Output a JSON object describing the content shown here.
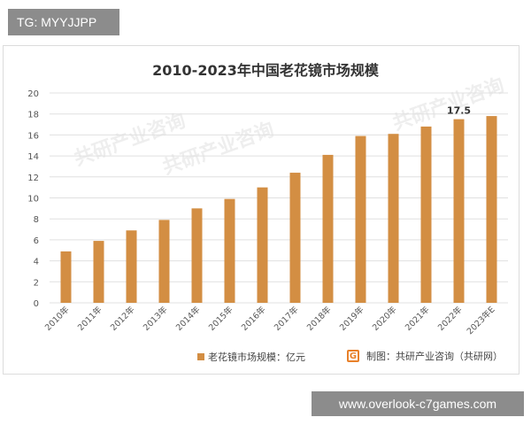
{
  "tag_text": "TG: MYYJJPP",
  "banner_text": "www.overlook-c7games.com",
  "watermark_text": "共研产业咨询",
  "source_text": "制图：共研产业咨询（共研网）",
  "source_icon": "G",
  "colors": {
    "bar": "#d38e43",
    "grid": "#e0e0e0",
    "text": "#555555",
    "accent": "#e8812a"
  },
  "chart_data": {
    "type": "bar",
    "title": "2010-2023年中国老花镜市场规模",
    "categories": [
      "2010年",
      "2011年",
      "2012年",
      "2013年",
      "2014年",
      "2015年",
      "2016年",
      "2017年",
      "2018年",
      "2019年",
      "2020年",
      "2021年",
      "2022年",
      "2023年E"
    ],
    "series": [
      {
        "name": "老花镜市场规模：亿元",
        "values": [
          4.9,
          5.9,
          6.9,
          7.9,
          9.0,
          9.9,
          11.0,
          12.4,
          14.1,
          15.9,
          16.1,
          16.8,
          17.5,
          17.8
        ]
      }
    ],
    "data_labels": [
      {
        "index": 12,
        "text": "17.5"
      }
    ],
    "ylim": [
      0,
      20
    ],
    "yticks": [
      0,
      2,
      4,
      6,
      8,
      10,
      12,
      14,
      16,
      18,
      20
    ],
    "grid": true,
    "legend_position": "bottom"
  }
}
